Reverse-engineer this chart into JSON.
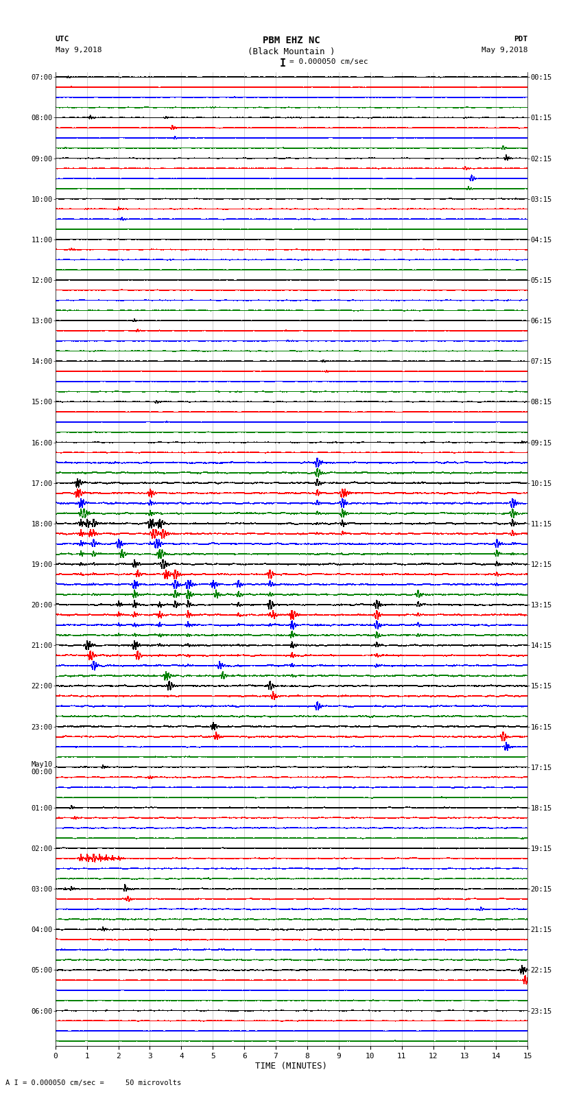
{
  "title_line1": "PBM EHZ NC",
  "title_line2": "(Black Mountain )",
  "scale_label": "I = 0.000050 cm/sec",
  "left_label_top": "UTC",
  "left_label_date": "May 9,2018",
  "right_label_top": "PDT",
  "right_label_date": "May 9,2018",
  "bottom_label": "TIME (MINUTES)",
  "bottom_note": "A I = 0.000050 cm/sec =     50 microvolts",
  "utc_times": [
    "07:00",
    "",
    "",
    "",
    "08:00",
    "",
    "",
    "",
    "09:00",
    "",
    "",
    "",
    "10:00",
    "",
    "",
    "",
    "11:00",
    "",
    "",
    "",
    "12:00",
    "",
    "",
    "",
    "13:00",
    "",
    "",
    "",
    "14:00",
    "",
    "",
    "",
    "15:00",
    "",
    "",
    "",
    "16:00",
    "",
    "",
    "",
    "17:00",
    "",
    "",
    "",
    "18:00",
    "",
    "",
    "",
    "19:00",
    "",
    "",
    "",
    "20:00",
    "",
    "",
    "",
    "21:00",
    "",
    "",
    "",
    "22:00",
    "",
    "",
    "",
    "23:00",
    "",
    "",
    "",
    "May10\n00:00",
    "",
    "",
    "",
    "01:00",
    "",
    "",
    "",
    "02:00",
    "",
    "",
    "",
    "03:00",
    "",
    "",
    "",
    "04:00",
    "",
    "",
    "",
    "05:00",
    "",
    "",
    "",
    "06:00",
    "",
    "",
    ""
  ],
  "pdt_times": [
    "00:15",
    "",
    "",
    "",
    "01:15",
    "",
    "",
    "",
    "02:15",
    "",
    "",
    "",
    "03:15",
    "",
    "",
    "",
    "04:15",
    "",
    "",
    "",
    "05:15",
    "",
    "",
    "",
    "06:15",
    "",
    "",
    "",
    "07:15",
    "",
    "",
    "",
    "08:15",
    "",
    "",
    "",
    "09:15",
    "",
    "",
    "",
    "10:15",
    "",
    "",
    "",
    "11:15",
    "",
    "",
    "",
    "12:15",
    "",
    "",
    "",
    "13:15",
    "",
    "",
    "",
    "14:15",
    "",
    "",
    "",
    "15:15",
    "",
    "",
    "",
    "16:15",
    "",
    "",
    "",
    "17:15",
    "",
    "",
    "",
    "18:15",
    "",
    "",
    "",
    "19:15",
    "",
    "",
    "",
    "20:15",
    "",
    "",
    "",
    "21:15",
    "",
    "",
    "",
    "22:15",
    "",
    "",
    "",
    "23:15",
    "",
    "",
    ""
  ],
  "trace_colors": [
    "black",
    "red",
    "blue",
    "green"
  ],
  "n_rows": 96,
  "n_minutes": 15,
  "background_color": "white",
  "trace_lw": 0.35,
  "noise_base": 0.06,
  "xlim": [
    0,
    15
  ],
  "xticks": [
    0,
    1,
    2,
    3,
    4,
    5,
    6,
    7,
    8,
    9,
    10,
    11,
    12,
    13,
    14,
    15
  ]
}
